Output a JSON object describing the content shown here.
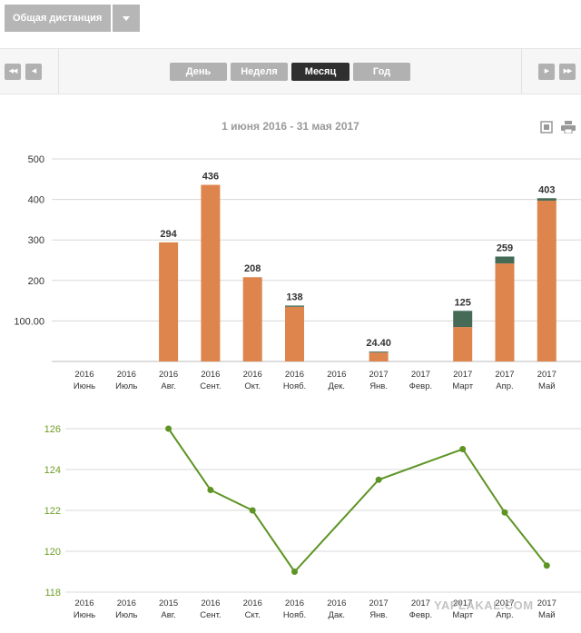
{
  "header": {
    "distance_select": "Общая дистанция",
    "period_tabs": [
      {
        "label": "День",
        "active": false
      },
      {
        "label": "Неделя",
        "active": false
      },
      {
        "label": "Месяц",
        "active": true
      },
      {
        "label": "Год",
        "active": false
      }
    ]
  },
  "range_title": "1 июня 2016 - 31 мая 2017",
  "icons": {
    "nav_first": "double-left-arrow",
    "nav_prev": "left-arrow",
    "nav_next": "right-arrow",
    "nav_last": "double-right-arrow",
    "expand": "expand-icon",
    "print": "print-icon"
  },
  "chart_data": [
    {
      "type": "bar",
      "stacked": true,
      "categories": [
        [
          "2016",
          "Июнь"
        ],
        [
          "2016",
          "Июль"
        ],
        [
          "2016",
          "Авг."
        ],
        [
          "2016",
          "Сент."
        ],
        [
          "2016",
          "Окт."
        ],
        [
          "2016",
          "Нояб."
        ],
        [
          "2016",
          "Дек."
        ],
        [
          "2017",
          "Янв."
        ],
        [
          "2017",
          "Февр."
        ],
        [
          "2017",
          "Март"
        ],
        [
          "2017",
          "Апр."
        ],
        [
          "2017",
          "Май"
        ]
      ],
      "series": [
        {
          "color": "#de844d",
          "values": [
            0,
            0,
            294,
            436,
            208,
            135,
            0,
            22,
            0,
            85,
            242,
            397
          ]
        },
        {
          "color": "#456b57",
          "values": [
            0,
            0,
            0,
            0,
            0,
            3,
            0,
            2.4,
            0,
            40,
            17,
            6
          ]
        }
      ],
      "data_labels": [
        "",
        "",
        "294",
        "436",
        "208",
        "138",
        "",
        "24.40",
        "",
        "125",
        "259",
        "403"
      ],
      "yticks": [
        "",
        "100.00",
        "200",
        "300",
        "400",
        "500"
      ],
      "ylim": [
        0,
        500
      ],
      "grid": true
    },
    {
      "type": "line",
      "color": "#5e9424",
      "categories": [
        [
          "2016",
          "Июнь"
        ],
        [
          "2016",
          "Июль"
        ],
        [
          "2015",
          "Авг."
        ],
        [
          "2016",
          "Сент."
        ],
        [
          "2016",
          "Скт."
        ],
        [
          "2016",
          "Нояб."
        ],
        [
          "2016",
          "Дак."
        ],
        [
          "2017",
          "Янв."
        ],
        [
          "2017",
          "Февр."
        ],
        [
          "2017",
          "Март"
        ],
        [
          "2017",
          "Апр."
        ],
        [
          "2017",
          "Май"
        ]
      ],
      "values": [
        null,
        null,
        126,
        123,
        122,
        119,
        null,
        123.5,
        null,
        125,
        121.9,
        119.3
      ],
      "yticks": [
        "118",
        "120",
        "122",
        "124",
        "126"
      ],
      "ylim": [
        118,
        126
      ],
      "grid": true
    }
  ],
  "watermark": "YAPLAKAL.COM"
}
